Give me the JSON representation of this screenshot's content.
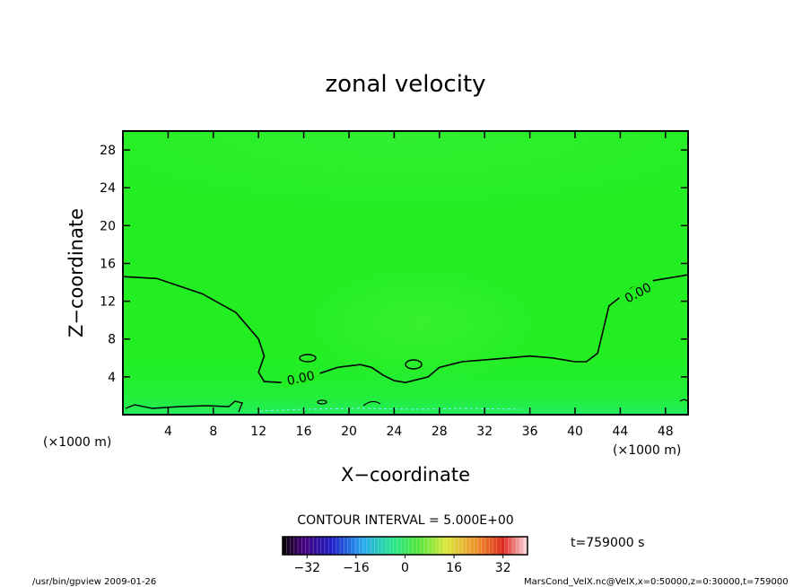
{
  "chart_data": {
    "type": "heatmap",
    "title": "zonal velocity",
    "xlabel": "X−coordinate",
    "ylabel": "Z−coordinate",
    "x_unit": "(×1000 m)",
    "y_unit": "(×1000 m)",
    "xlim": [
      0,
      50
    ],
    "ylim": [
      0,
      30
    ],
    "x_ticks": [
      "4",
      "8",
      "12",
      "16",
      "20",
      "24",
      "28",
      "32",
      "36",
      "40",
      "44",
      "48"
    ],
    "y_ticks": [
      "4",
      "8",
      "12",
      "16",
      "20",
      "24",
      "28"
    ],
    "x_tick_values": [
      4,
      8,
      12,
      16,
      20,
      24,
      28,
      32,
      36,
      40,
      44,
      48
    ],
    "y_tick_values": [
      4,
      8,
      12,
      16,
      20,
      24,
      28
    ],
    "contour_interval": "CONTOUR INTERVAL = 5.000E+00",
    "contour_labels": [
      "0.00",
      "0.00"
    ],
    "zero_contour": {
      "x": [
        0,
        3,
        7,
        10,
        12,
        12.5,
        12,
        12.5,
        14,
        17,
        19,
        21,
        22,
        23,
        24,
        25,
        27,
        28,
        30,
        33,
        36,
        38,
        40,
        41,
        42,
        43,
        45,
        47,
        50
      ],
      "y": [
        14.6,
        14.4,
        12.8,
        10.8,
        8.0,
        6.2,
        4.5,
        3.5,
        3.4,
        4.2,
        5.0,
        5.3,
        5.0,
        4.2,
        3.6,
        3.4,
        4.0,
        5.0,
        5.6,
        5.9,
        6.2,
        6.0,
        5.6,
        5.6,
        6.5,
        11.5,
        13.4,
        14.2,
        14.8
      ]
    },
    "colorbar": {
      "ticks": [
        "−32",
        "−16",
        "0",
        "16",
        "32"
      ],
      "tick_values": [
        -32,
        -16,
        0,
        16,
        32
      ],
      "range": [
        -40,
        40
      ]
    },
    "field_color": "#22ee22",
    "time_label": "t=759000 s"
  },
  "footer": {
    "left": "/usr/bin/gpview   2009-01-26",
    "right": "MarsCond_VelX.nc@VelX,x=0:50000,z=0:30000,t=759000"
  }
}
